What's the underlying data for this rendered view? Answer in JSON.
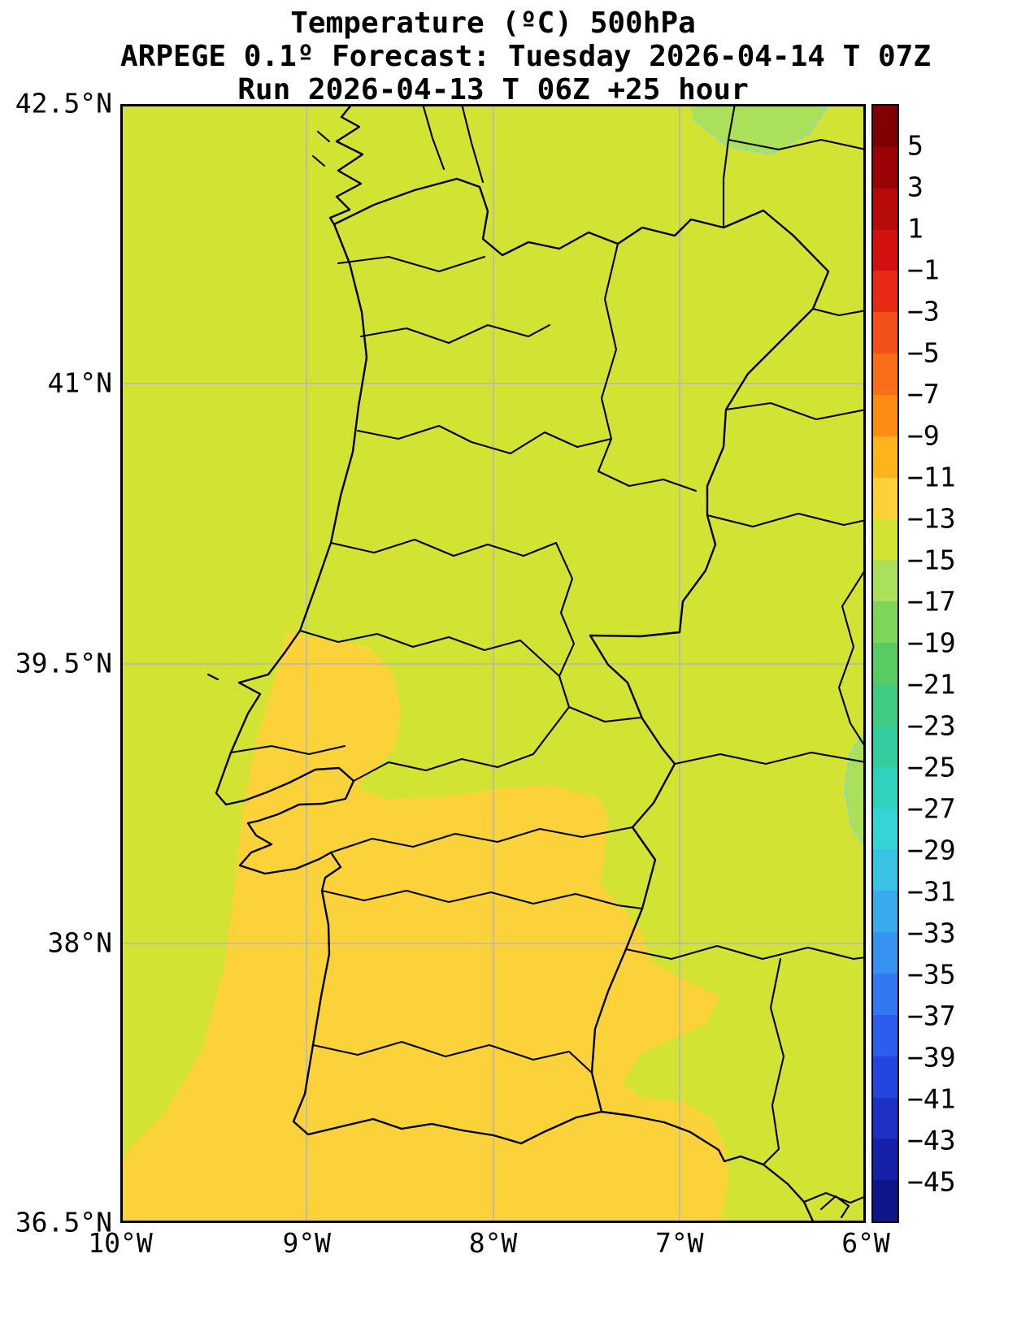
{
  "title": {
    "line1": "Temperature (ºC) 500hPa",
    "line2": "ARPEGE 0.1º Forecast: Tuesday 2026-04-14 T 07Z",
    "line3": "Run 2026-04-13 T 06Z +25 hour"
  },
  "axes": {
    "y_ticks": [
      "42.5°N",
      "41°N",
      "39.5°N",
      "38°N",
      "36.5°N"
    ],
    "x_ticks": [
      "10°W",
      "9°W",
      "8°W",
      "7°W",
      "6°W"
    ]
  },
  "colorbar": {
    "tick_labels": [
      "5",
      "3",
      "1",
      "−1",
      "−3",
      "−5",
      "−7",
      "−9",
      "−11",
      "−13",
      "−15",
      "−17",
      "−19",
      "−21",
      "−23",
      "−25",
      "−27",
      "−29",
      "−31",
      "−33",
      "−35",
      "−37",
      "−39",
      "−41",
      "−43",
      "−45"
    ],
    "band_colors": [
      "#7f0000",
      "#9b0404",
      "#b70a0a",
      "#d31010",
      "#e82a14",
      "#f34f19",
      "#f96f17",
      "#fc8c13",
      "#feb41a",
      "#fcd23a",
      "#d3e334",
      "#abe05a",
      "#7ed558",
      "#58cc63",
      "#40cb81",
      "#34cd9f",
      "#30d2bd",
      "#35d5d5",
      "#38c3e4",
      "#39abec",
      "#3692f0",
      "#3278f2",
      "#2c5eee",
      "#2546de",
      "#1d31c3",
      "#1522a8",
      "#0f1689"
    ]
  },
  "map": {
    "background_color": "#d3e334",
    "warm_patch_color": "#fcd23a",
    "cool_patch_color": "#abe05a",
    "contour_dash_color": "#7fd8e8",
    "boundary_color": "#000000",
    "grid_color": "#b0b4c4"
  },
  "chart_data": {
    "type": "heatmap",
    "title": "Temperature (ºC) 500hPa",
    "subtitle": "ARPEGE 0.1º Forecast: Tuesday 2026-04-14 T 07Z",
    "run_info": "Run 2026-04-13 T 06Z +25 hour",
    "units": "°C",
    "lon_ticks_deg_west": [
      10,
      9,
      8,
      7,
      6
    ],
    "lat_ticks_deg_north": [
      42.5,
      41,
      39.5,
      38,
      36.5
    ],
    "colorbar_ticks": [
      5,
      3,
      1,
      -1,
      -3,
      -5,
      -7,
      -9,
      -11,
      -13,
      -15,
      -17,
      -19,
      -21,
      -23,
      -25,
      -27,
      -29,
      -31,
      -33,
      -35,
      -37,
      -39,
      -41,
      -43,
      -45
    ],
    "level_step": 2,
    "legend_position": "right",
    "grid": true,
    "field_regions": [
      {
        "region": "most of mapped area (northern/central Portugal, western Spain, adjacent Atlantic)",
        "temperature_band": "-15 to -13"
      },
      {
        "region": "southwest Portugal: Lisbon area, Alentejo coast, Algarve and nearby Atlantic, extending east toward 7°W",
        "temperature_band": "-13 to -11"
      },
      {
        "region": "small patch at northern map edge near 6.3°W (dashed contour) and sliver on eastern edge near 38.5°N",
        "temperature_band": "-17 to -15"
      }
    ]
  }
}
